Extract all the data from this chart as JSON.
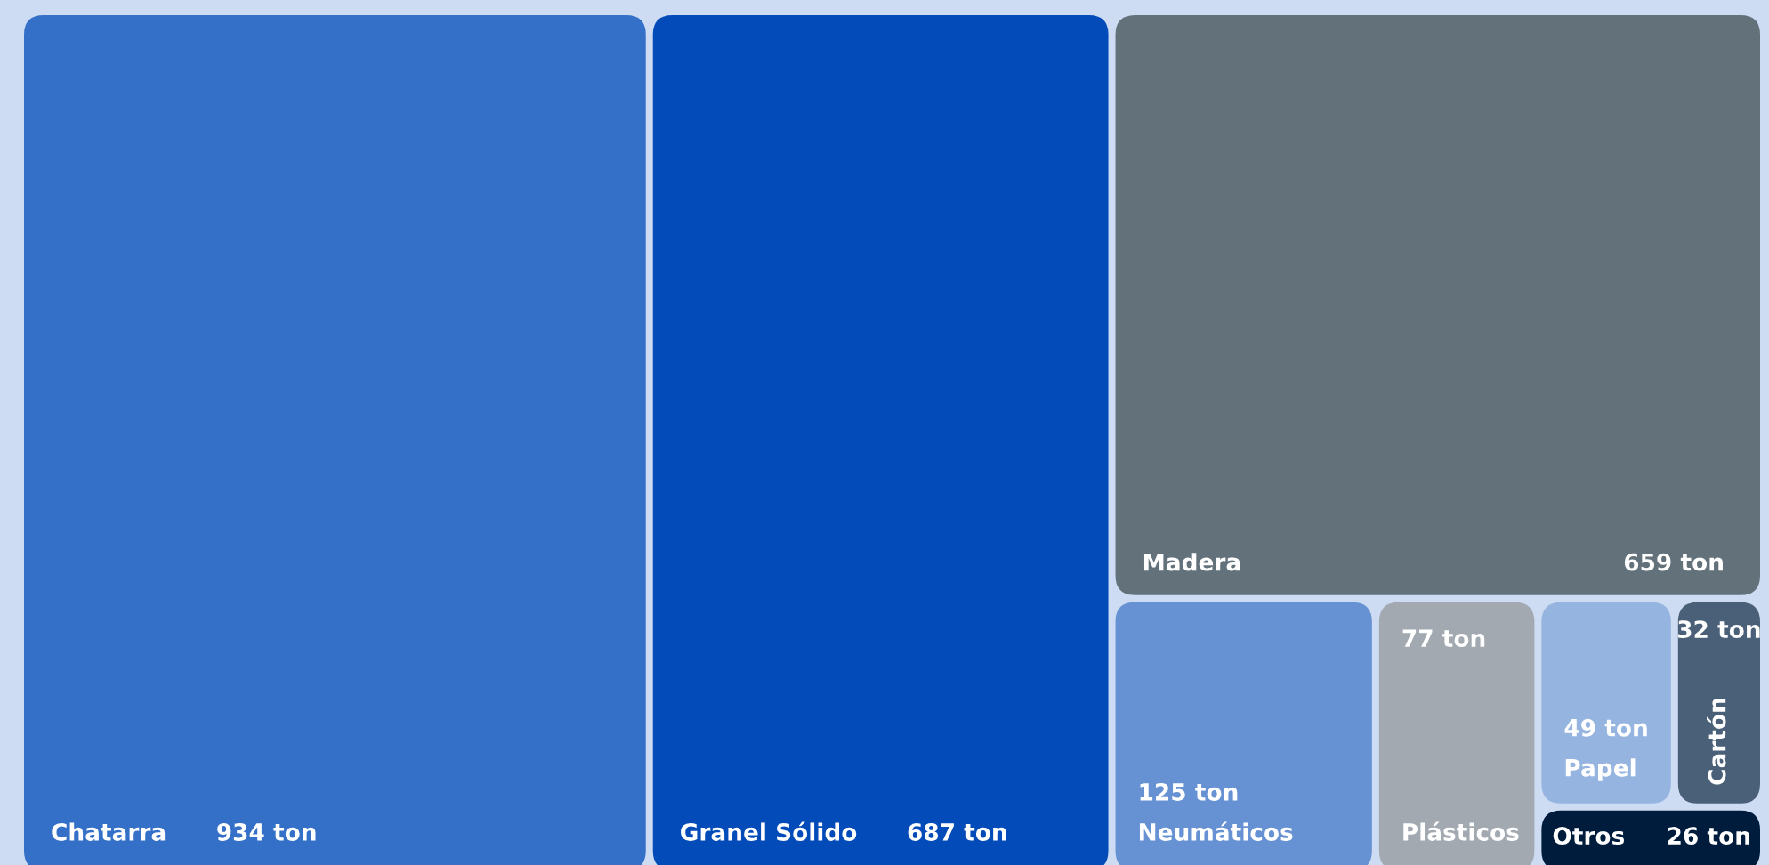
{
  "chart_data": {
    "type": "other",
    "categories": [
      "Chatarra",
      "Granel Sólido",
      "Madera",
      "Neumáticos",
      "Plásticos",
      "Papel",
      "Cartón",
      "Otros"
    ],
    "values": [
      934,
      687,
      659,
      125,
      77,
      49,
      32,
      26
    ],
    "value_labels": [
      "934 ton",
      "687 ton",
      "659 ton",
      "125 ton",
      "77 ton",
      "49 ton",
      "32 ton",
      "26 ton"
    ],
    "colors": [
      "#3470c8",
      "#034bb9",
      "#63717b",
      "#6692d4",
      "#a2a9b0",
      "#95b4e0",
      "#4a5f78",
      "#001c3d"
    ]
  }
}
